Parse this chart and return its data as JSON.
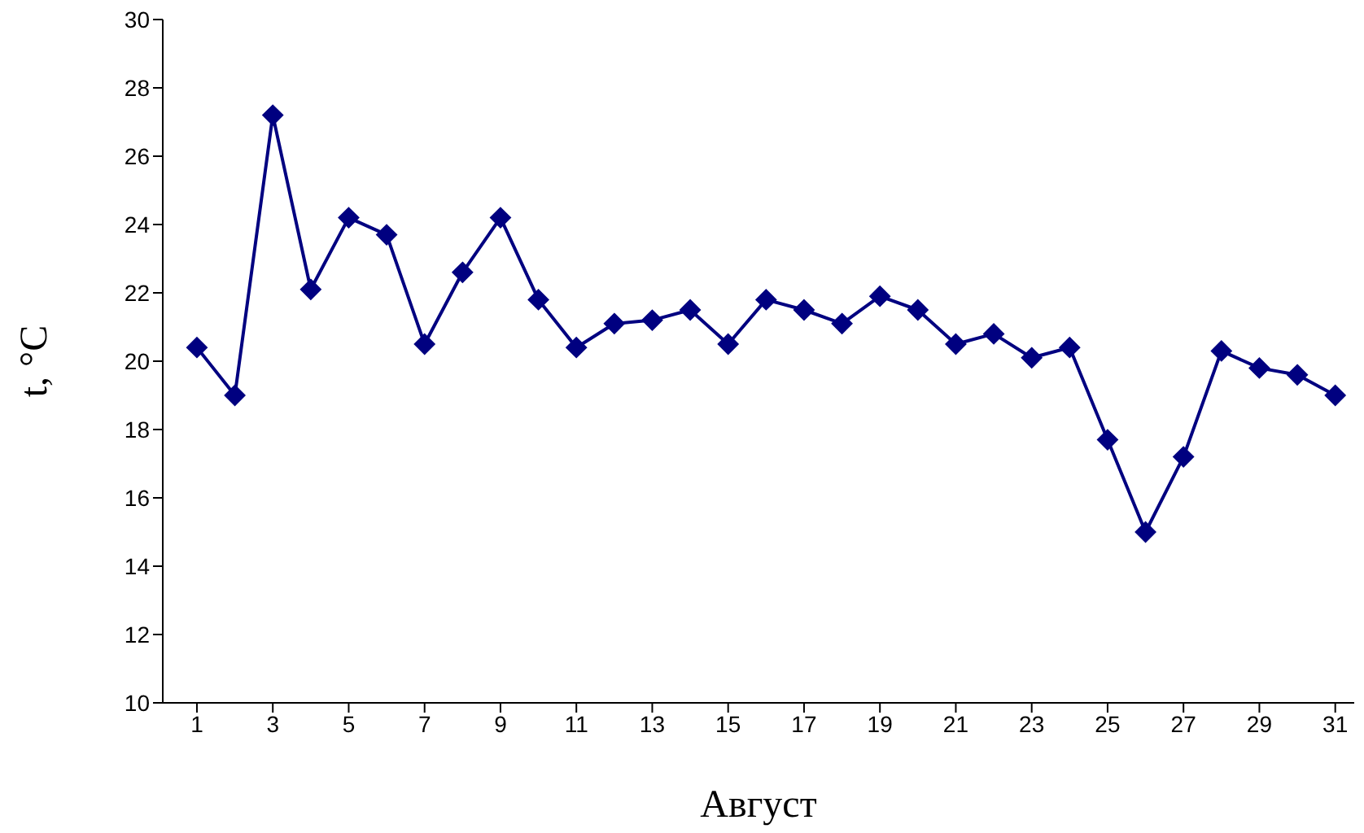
{
  "chart_data": {
    "type": "line",
    "xlabel": "Август",
    "ylabel": "t, °C",
    "x": [
      1,
      2,
      3,
      4,
      5,
      6,
      7,
      8,
      9,
      10,
      11,
      12,
      13,
      14,
      15,
      16,
      17,
      18,
      19,
      20,
      21,
      22,
      23,
      24,
      25,
      26,
      27,
      28,
      29,
      30,
      31
    ],
    "series": [
      {
        "color": "#000080",
        "values": [
          20.4,
          19.0,
          27.2,
          22.1,
          24.2,
          23.7,
          20.5,
          22.6,
          24.2,
          21.8,
          20.4,
          21.1,
          21.2,
          21.5,
          20.5,
          21.8,
          21.5,
          21.1,
          21.9,
          21.5,
          20.5,
          20.8,
          20.1,
          20.4,
          17.7,
          15.0,
          17.2,
          20.3,
          19.8,
          19.6,
          19.0
        ]
      }
    ],
    "xlim": [
      0.1,
      31.5
    ],
    "xticks": [
      1,
      3,
      5,
      7,
      9,
      11,
      13,
      15,
      17,
      19,
      21,
      23,
      25,
      27,
      29,
      31
    ],
    "ylim": [
      10,
      30
    ],
    "yticks": [
      10,
      12,
      14,
      16,
      18,
      20,
      22,
      24,
      26,
      28,
      30
    ],
    "grid": false,
    "legend": false,
    "marker": "diamond",
    "line_style": "solid"
  }
}
